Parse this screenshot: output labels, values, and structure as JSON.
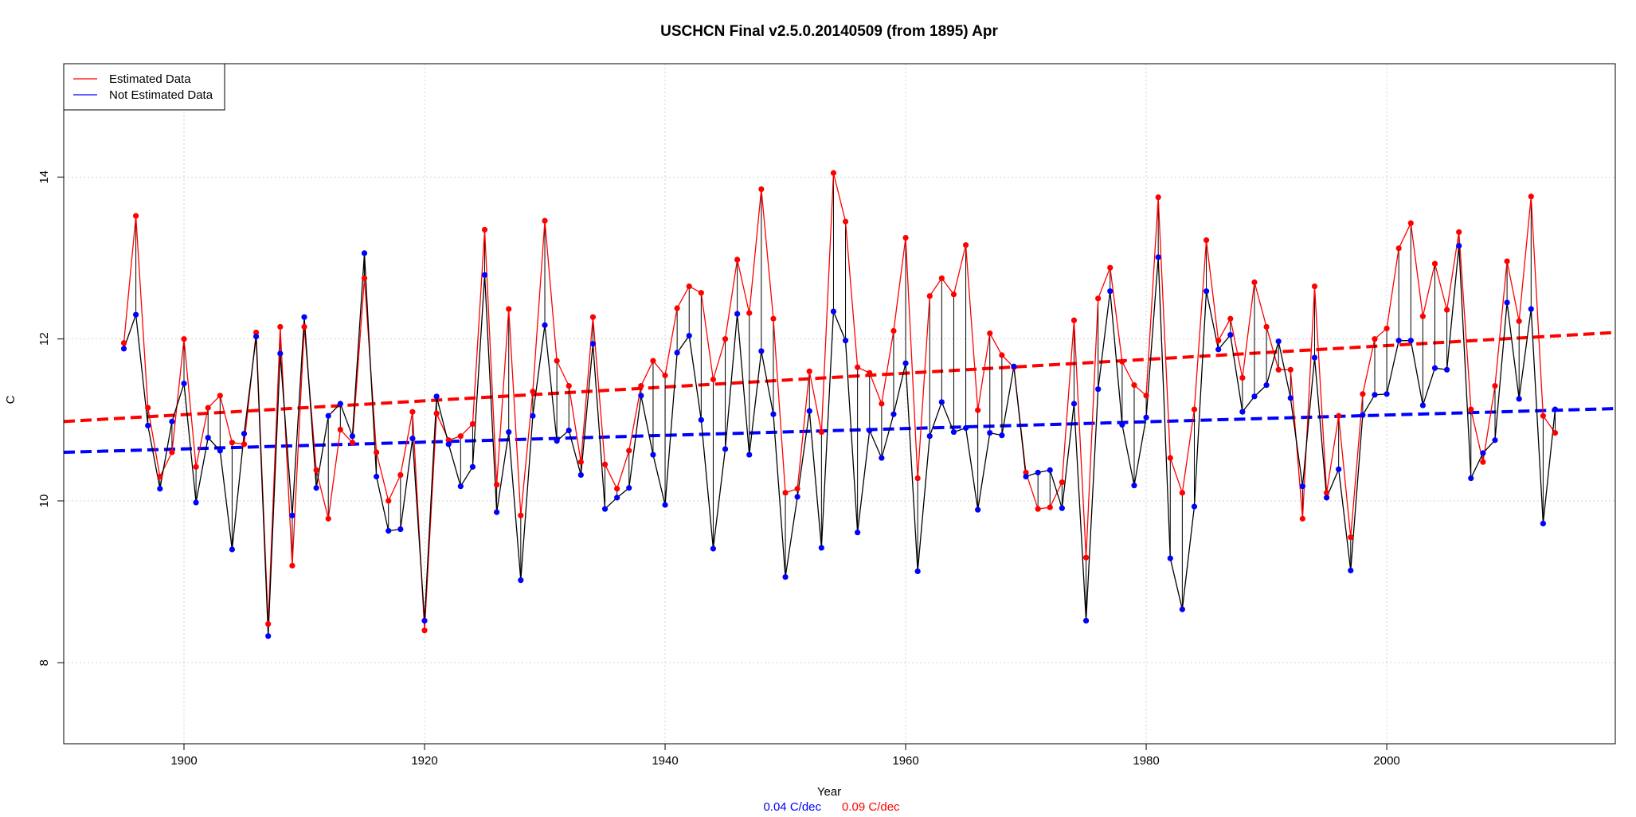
{
  "chart_data": {
    "type": "line",
    "title": "USCHCN Final v2.5.0.20140509 (from 1895) Apr",
    "xlabel": "Year",
    "ylabel": "C",
    "xlim": [
      1890,
      2019
    ],
    "ylim": [
      7.0,
      15.4
    ],
    "x_ticks": [
      1900,
      1920,
      1940,
      1960,
      1980,
      2000
    ],
    "y_ticks": [
      8,
      10,
      12,
      14
    ],
    "x_tick_labels": [
      "1900",
      "1920",
      "1940",
      "1960",
      "1980",
      "2000"
    ],
    "y_tick_labels": [
      "8",
      "10",
      "12",
      "14"
    ],
    "grid": true,
    "legend_position": "top-left",
    "colors": {
      "estimated": "#ff0000",
      "not_estimated": "#0000ff",
      "connector": "#000000",
      "grid": "#d3d3d3"
    },
    "x_start": 1895,
    "series": [
      {
        "name": "Estimated Data",
        "color": "#ff0000",
        "values": [
          11.95,
          13.52,
          11.15,
          10.3,
          10.6,
          12.0,
          10.42,
          11.15,
          11.3,
          10.72,
          10.7,
          12.08,
          8.48,
          12.15,
          9.2,
          12.15,
          10.38,
          9.78,
          10.88,
          10.72,
          12.75,
          10.6,
          10.0,
          10.32,
          11.1,
          8.4,
          11.08,
          10.75,
          10.8,
          10.95,
          13.35,
          10.2,
          12.37,
          9.82,
          11.35,
          13.46,
          11.73,
          11.42,
          10.48,
          12.27,
          10.45,
          10.15,
          10.62,
          11.42,
          11.73,
          11.55,
          12.38,
          12.65,
          12.57,
          11.5,
          12.0,
          12.98,
          12.32,
          13.85,
          12.25,
          10.1,
          10.15,
          11.6,
          10.85,
          14.05,
          13.45,
          11.65,
          11.58,
          11.2,
          12.1,
          13.25,
          10.28,
          12.53,
          12.75,
          12.55,
          13.16,
          11.12,
          12.07,
          11.8,
          11.65,
          10.35,
          9.9,
          9.92,
          10.23,
          12.23,
          9.3,
          12.5,
          12.88,
          11.72,
          11.43,
          11.3,
          13.75,
          10.53,
          10.1,
          11.13,
          13.22,
          11.98,
          12.25,
          11.52,
          12.7,
          12.15,
          11.62,
          11.62,
          9.78,
          12.65,
          10.1,
          11.05,
          9.55,
          11.32,
          12.0,
          12.13,
          13.12,
          13.43,
          12.28,
          12.93,
          12.36,
          13.32,
          11.13,
          10.48,
          11.42,
          12.96,
          12.22,
          13.76,
          11.05,
          10.84
        ],
        "trend": [
          10.98,
          12.08
        ],
        "trend_label": "0.09 C/dec"
      },
      {
        "name": "Not Estimated Data",
        "color": "#0000ff",
        "values": [
          11.88,
          12.3,
          10.93,
          10.15,
          10.98,
          11.45,
          9.98,
          10.78,
          10.62,
          9.4,
          10.83,
          12.03,
          8.33,
          11.82,
          9.82,
          12.27,
          10.16,
          11.05,
          11.2,
          10.8,
          13.06,
          10.3,
          9.63,
          9.65,
          10.77,
          8.52,
          11.29,
          10.7,
          10.18,
          10.42,
          12.79,
          9.86,
          10.85,
          9.02,
          11.05,
          12.17,
          10.74,
          10.87,
          10.32,
          11.94,
          9.9,
          10.04,
          10.16,
          11.3,
          10.57,
          9.95,
          11.83,
          12.04,
          11.0,
          9.41,
          10.64,
          12.31,
          10.57,
          11.85,
          11.07,
          9.06,
          10.05,
          11.11,
          9.42,
          12.34,
          11.98,
          9.61,
          10.87,
          10.53,
          11.07,
          11.7,
          9.13,
          10.8,
          11.22,
          10.85,
          10.9,
          9.89,
          10.84,
          10.81,
          11.66,
          10.3,
          10.35,
          10.38,
          9.91,
          11.2,
          8.52,
          11.38,
          12.59,
          10.94,
          10.19,
          11.03,
          13.01,
          9.29,
          8.66,
          9.93,
          12.59,
          11.87,
          12.05,
          11.1,
          11.29,
          11.43,
          11.97,
          11.27,
          10.18,
          11.77,
          10.04,
          10.39,
          9.14,
          11.06,
          11.31,
          11.32,
          11.98,
          11.98,
          11.18,
          11.64,
          11.62,
          13.15,
          10.28,
          10.59,
          10.75,
          12.45,
          11.26,
          12.37,
          9.72,
          11.13
        ],
        "trend": [
          10.6,
          11.14
        ],
        "trend_label": "0.04 C/dec"
      }
    ]
  }
}
